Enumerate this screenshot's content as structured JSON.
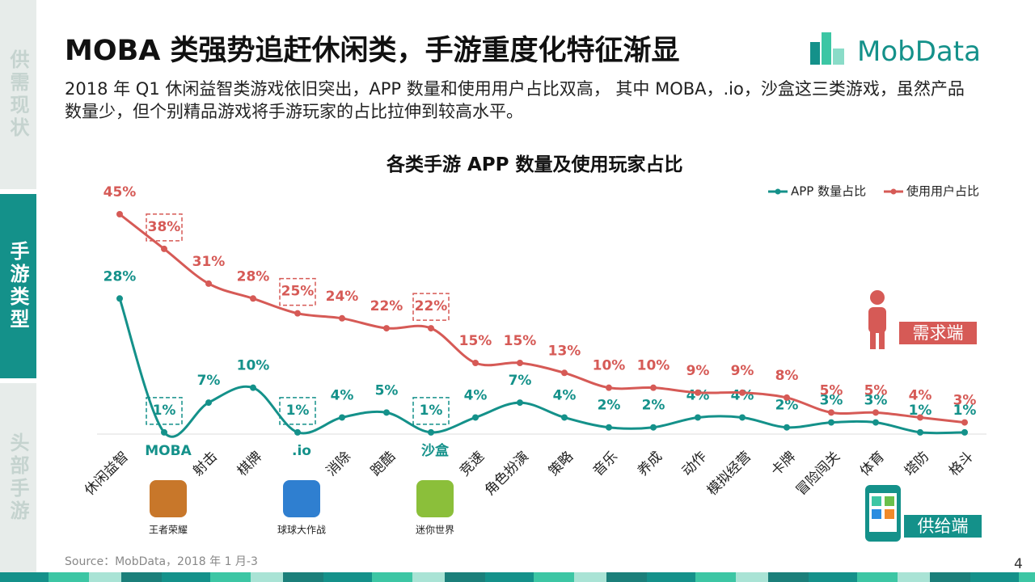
{
  "nav": [
    "供需现状",
    "手游类型",
    "头部手游"
  ],
  "header": {
    "title": "MOBA 类强势追赶休闲类，手游重度化特征渐显",
    "logo": "MobData",
    "subtitle": "2018 年 Q1 休闲益智类游戏依旧突出，APP 数量和使用用户占比双高， 其中 MOBA，.io，沙盒这三类游戏，虽然产品数量少，但个别精品游戏将手游玩家的占比拉伸到较高水平。"
  },
  "chart_data": {
    "type": "line",
    "title": "各类手游 APP 数量及使用玩家占比",
    "categories": [
      "休闲益智",
      "MOBA",
      "射击",
      "棋牌",
      ".io",
      "消除",
      "跑酷",
      "沙盒",
      "竞速",
      "角色扮演",
      "策略",
      "音乐",
      "养成",
      "动作",
      "模拟经营",
      "卡牌",
      "冒险闯关",
      "体育",
      "塔防",
      "格斗"
    ],
    "series": [
      {
        "name": "APP 数量占比",
        "color": "#14918a",
        "values": [
          28,
          1,
          7,
          10,
          1,
          4,
          5,
          1,
          4,
          7,
          4,
          2,
          2,
          4,
          4,
          2,
          3,
          3,
          1,
          1
        ],
        "value_labels": [
          "28%",
          "1%",
          "7%",
          "10%",
          "1%",
          "4%",
          "5%",
          "1%",
          "4%",
          "7%",
          "4%",
          "2%",
          "2%",
          "4%",
          "4%",
          "2%",
          "3%",
          "3%",
          "1%",
          "1%"
        ]
      },
      {
        "name": "使用用户占比",
        "color": "#d65a56",
        "values": [
          45,
          38,
          31,
          28,
          25,
          24,
          22,
          22,
          15,
          15,
          13,
          10,
          10,
          9,
          9,
          8,
          5,
          5,
          4,
          3
        ],
        "value_labels": [
          "45%",
          "38%",
          "31%",
          "28%",
          "25%",
          "24%",
          "22%",
          "22%",
          "15%",
          "15%",
          "13%",
          "10%",
          "10%",
          "9%",
          "9%",
          "8%",
          "5%",
          "5%",
          "4%",
          "3%"
        ]
      }
    ]
  },
  "games": [
    "王者荣耀",
    "球球大作战",
    "迷你世界"
  ],
  "badges": {
    "demand": "需求端",
    "supply": "供给端"
  },
  "source": "Source：MobData，2018 年 1 月-3",
  "page_number": "4"
}
